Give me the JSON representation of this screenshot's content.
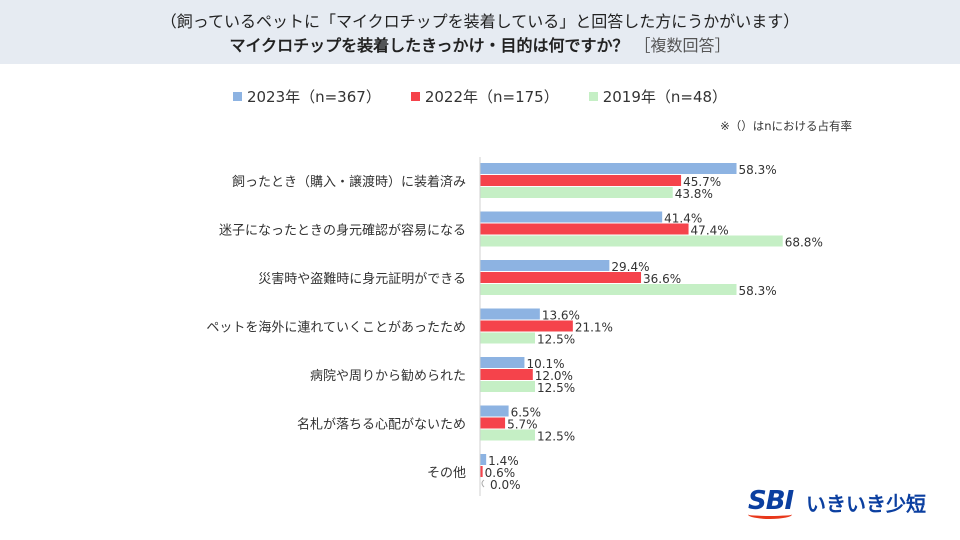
{
  "header": {
    "line1": "（飼っているペットに「マイクロチップを装着している」と回答した方にうかがいます）",
    "line2_main": "マイクロチップを装着したきっかけ・目的は何ですか？",
    "line2_note": "［複数回答］"
  },
  "footnote": "※（）はnにおける占有率",
  "logo": {
    "mark": "SBI",
    "text": "いきいき少短"
  },
  "colors": {
    "s2023": "#8db3e2",
    "s2022": "#f5434b",
    "s2019": "#c5efc5",
    "header_bg": "#e6ebf2"
  },
  "chart_data": {
    "type": "bar",
    "orientation": "horizontal",
    "categories": [
      "飼ったとき（購入・譲渡時）に装着済み",
      "迷子になったときの身元確認が容易になる",
      "災害時や盗難時に身元証明ができる",
      "ペットを海外に連れていくことがあったため",
      "病院や周りから勧められた",
      "名札が落ちる心配がないため",
      "その他"
    ],
    "series": [
      {
        "name": "2023年（n=367）",
        "color": "#8db3e2",
        "values": [
          58.3,
          41.4,
          29.4,
          13.6,
          10.1,
          6.5,
          1.4
        ]
      },
      {
        "name": "2022年（n=175）",
        "color": "#f5434b",
        "values": [
          45.7,
          47.4,
          36.6,
          21.1,
          12.0,
          5.7,
          0.6
        ]
      },
      {
        "name": "2019年（n=48）",
        "color": "#c5efc5",
        "values": [
          43.8,
          68.8,
          58.3,
          12.5,
          12.5,
          12.5,
          0.0
        ]
      }
    ],
    "value_suffix": "%",
    "xlim": [
      0,
      100
    ],
    "grid": false,
    "legend": "top-center"
  }
}
